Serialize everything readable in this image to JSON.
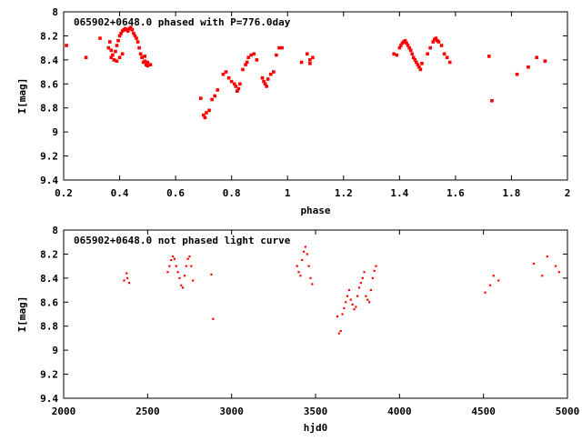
{
  "colors": {
    "points": "#ff0000",
    "axes": "#000000",
    "background": "#ffffff"
  },
  "chart_data": [
    {
      "type": "scatter",
      "title": "065902+0648.0 phased with P=776.0day",
      "xlabel": "phase",
      "ylabel": "I[mag]",
      "xlim": [
        0.2,
        2.0
      ],
      "ylim": [
        8.0,
        9.4
      ],
      "y_inverted": true,
      "xticks": [
        0.2,
        0.4,
        0.6,
        0.8,
        1.0,
        1.2,
        1.4,
        1.6,
        1.8,
        2.0
      ],
      "xtick_labels": [
        "0.2",
        "0.4",
        "0.6",
        "0.8",
        "1",
        "1.2",
        "1.4",
        "1.6",
        "1.8",
        "2"
      ],
      "yticks": [
        8.0,
        8.2,
        8.4,
        8.6,
        8.8,
        9.0,
        9.2,
        9.4
      ],
      "ytick_labels": [
        "8",
        "8.2",
        "8.4",
        "8.6",
        "8.8",
        "9",
        "9.2",
        "9.4"
      ],
      "marker_size": 3.6,
      "x": [
        0.21,
        0.28,
        0.33,
        0.36,
        0.365,
        0.37,
        0.375,
        0.38,
        0.385,
        0.39,
        0.395,
        0.4,
        0.405,
        0.41,
        0.415,
        0.42,
        0.425,
        0.43,
        0.435,
        0.44,
        0.445,
        0.45,
        0.455,
        0.46,
        0.465,
        0.47,
        0.475,
        0.48,
        0.485,
        0.49,
        0.495,
        0.5,
        0.51,
        0.37,
        0.38,
        0.39,
        0.4,
        0.41,
        0.48,
        0.49,
        0.5,
        0.69,
        0.7,
        0.705,
        0.71,
        0.72,
        0.73,
        0.74,
        0.75,
        0.77,
        0.78,
        0.79,
        0.8,
        0.81,
        0.815,
        0.82,
        0.825,
        0.83,
        0.84,
        0.85,
        0.855,
        0.86,
        0.87,
        0.88,
        0.89,
        0.91,
        0.915,
        0.92,
        0.925,
        0.93,
        0.94,
        0.95,
        0.96,
        0.97,
        0.98,
        1.05,
        1.07,
        1.08,
        1.09,
        1.08,
        1.38,
        1.39,
        1.4,
        1.405,
        1.41,
        1.415,
        1.42,
        1.425,
        1.43,
        1.435,
        1.44,
        1.445,
        1.45,
        1.455,
        1.46,
        1.465,
        1.47,
        1.475,
        1.48,
        1.5,
        1.51,
        1.52,
        1.525,
        1.53,
        1.535,
        1.54,
        1.55,
        1.56,
        1.57,
        1.58,
        1.72,
        1.73,
        1.82,
        1.86,
        1.89,
        1.92
      ],
      "y": [
        8.28,
        8.38,
        8.22,
        8.3,
        8.25,
        8.32,
        8.36,
        8.4,
        8.33,
        8.28,
        8.24,
        8.2,
        8.18,
        8.16,
        8.15,
        8.14,
        8.15,
        8.16,
        8.14,
        8.13,
        8.15,
        8.18,
        8.2,
        8.22,
        8.25,
        8.3,
        8.35,
        8.38,
        8.42,
        8.37,
        8.44,
        8.42,
        8.44,
        8.38,
        8.4,
        8.41,
        8.38,
        8.35,
        8.38,
        8.41,
        8.45,
        8.72,
        8.86,
        8.88,
        8.84,
        8.82,
        8.73,
        8.7,
        8.65,
        8.52,
        8.5,
        8.55,
        8.58,
        8.6,
        8.62,
        8.66,
        8.64,
        8.6,
        8.48,
        8.44,
        8.42,
        8.38,
        8.36,
        8.35,
        8.4,
        8.55,
        8.58,
        8.6,
        8.62,
        8.56,
        8.52,
        8.5,
        8.36,
        8.3,
        8.3,
        8.42,
        8.35,
        8.4,
        8.38,
        8.43,
        8.35,
        8.36,
        8.3,
        8.28,
        8.26,
        8.25,
        8.24,
        8.26,
        8.28,
        8.3,
        8.32,
        8.35,
        8.38,
        8.4,
        8.42,
        8.44,
        8.46,
        8.48,
        8.43,
        8.35,
        8.3,
        8.25,
        8.23,
        8.22,
        8.24,
        8.25,
        8.28,
        8.35,
        8.38,
        8.42,
        8.37,
        8.74,
        8.52,
        8.46,
        8.38,
        8.41
      ]
    },
    {
      "type": "scatter",
      "title": "065902+0648.0 not phased light curve",
      "xlabel": "hjd0",
      "ylabel": "I[mag]",
      "xlim": [
        2000,
        5000
      ],
      "ylim": [
        8.0,
        9.4
      ],
      "y_inverted": true,
      "xticks": [
        2000,
        2500,
        3000,
        3500,
        4000,
        4500,
        5000
      ],
      "xtick_labels": [
        "2000",
        "2500",
        "3000",
        "3500",
        "4000",
        "4500",
        "5000"
      ],
      "yticks": [
        8.0,
        8.2,
        8.4,
        8.6,
        8.8,
        9.0,
        9.2,
        9.4
      ],
      "ytick_labels": [
        "8",
        "8.2",
        "8.4",
        "8.6",
        "8.8",
        "9",
        "9.2",
        "9.4"
      ],
      "marker_size": 2.2,
      "x": [
        2360,
        2375,
        2380,
        2390,
        2620,
        2630,
        2640,
        2650,
        2660,
        2670,
        2680,
        2690,
        2700,
        2710,
        2720,
        2730,
        2740,
        2750,
        2760,
        2770,
        2880,
        2890,
        3390,
        3400,
        3410,
        3420,
        3430,
        3440,
        3450,
        3460,
        3470,
        3480,
        3630,
        3640,
        3650,
        3660,
        3670,
        3680,
        3690,
        3700,
        3710,
        3720,
        3730,
        3740,
        3750,
        3760,
        3770,
        3780,
        3790,
        3800,
        3810,
        3820,
        3830,
        3840,
        3850,
        3860,
        4510,
        4540,
        4560,
        4590,
        4800,
        4850,
        4880,
        4930,
        4950
      ],
      "y": [
        8.42,
        8.36,
        8.4,
        8.44,
        8.35,
        8.3,
        8.25,
        8.22,
        8.24,
        8.3,
        8.35,
        8.4,
        8.46,
        8.48,
        8.38,
        8.3,
        8.24,
        8.22,
        8.3,
        8.42,
        8.37,
        8.74,
        8.3,
        8.35,
        8.38,
        8.25,
        8.18,
        8.14,
        8.2,
        8.3,
        8.4,
        8.45,
        8.72,
        8.86,
        8.84,
        8.7,
        8.65,
        8.6,
        8.55,
        8.5,
        8.58,
        8.62,
        8.66,
        8.64,
        8.55,
        8.48,
        8.44,
        8.4,
        8.35,
        8.55,
        8.58,
        8.6,
        8.5,
        8.4,
        8.34,
        8.3,
        8.52,
        8.46,
        8.38,
        8.42,
        8.28,
        8.38,
        8.22,
        8.3,
        8.35
      ]
    }
  ]
}
